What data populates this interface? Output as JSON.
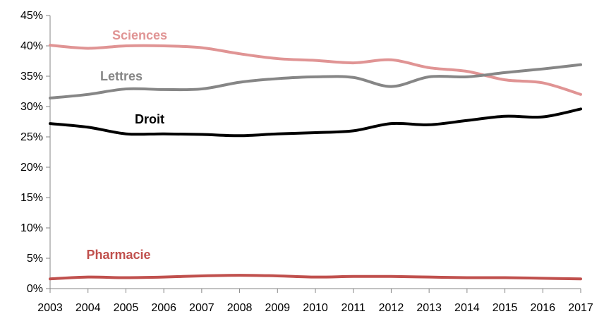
{
  "chart_data": {
    "type": "line",
    "x": [
      2003,
      2004,
      2005,
      2006,
      2007,
      2008,
      2009,
      2010,
      2011,
      2012,
      2013,
      2014,
      2015,
      2016,
      2017
    ],
    "ylim": [
      0,
      45
    ],
    "yticks": [
      0,
      5,
      10,
      15,
      20,
      25,
      30,
      35,
      40,
      45
    ],
    "ytick_labels": [
      "0%",
      "5%",
      "10%",
      "15%",
      "20%",
      "25%",
      "30%",
      "35%",
      "40%",
      "45%"
    ],
    "xtick_labels": [
      "2003",
      "2004",
      "2005",
      "2006",
      "2007",
      "2008",
      "2009",
      "2010",
      "2011",
      "2012",
      "2013",
      "2014",
      "2015",
      "2016",
      "2017"
    ],
    "grid": false,
    "legend": "inline labels",
    "series": [
      {
        "name": "Sciences",
        "color": "#e09494",
        "values": [
          40.1,
          39.6,
          40.0,
          40.0,
          39.7,
          38.7,
          37.9,
          37.6,
          37.2,
          37.7,
          36.4,
          35.8,
          34.4,
          33.9,
          32.0
        ]
      },
      {
        "name": "Lettres",
        "color": "#868686",
        "values": [
          31.4,
          32.0,
          32.9,
          32.8,
          32.9,
          34.0,
          34.6,
          34.9,
          34.8,
          33.3,
          34.9,
          34.9,
          35.6,
          36.2,
          36.9
        ]
      },
      {
        "name": "Droit",
        "color": "#000000",
        "values": [
          27.2,
          26.6,
          25.5,
          25.5,
          25.4,
          25.2,
          25.5,
          25.7,
          26.0,
          27.2,
          27.0,
          27.7,
          28.4,
          28.3,
          29.6
        ]
      },
      {
        "name": "Pharmacie",
        "color": "#c0504d",
        "values": [
          1.6,
          1.9,
          1.8,
          1.9,
          2.1,
          2.2,
          2.1,
          1.9,
          2.0,
          2.0,
          1.9,
          1.8,
          1.8,
          1.7,
          1.6
        ]
      }
    ]
  }
}
